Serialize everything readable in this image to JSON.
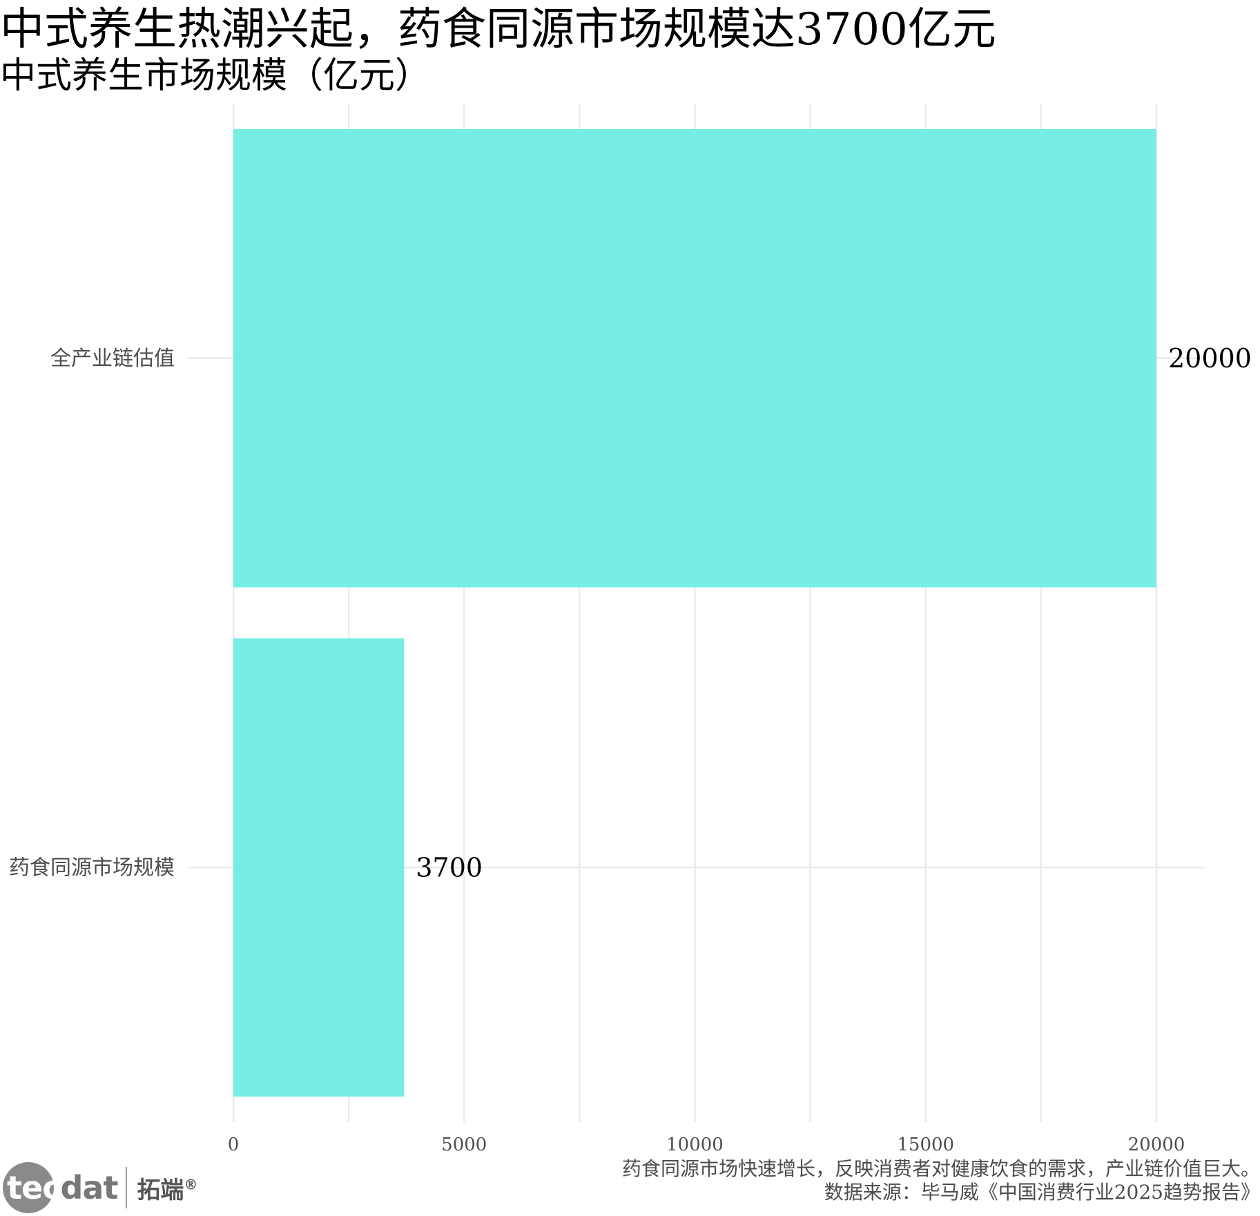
{
  "chart_data": {
    "type": "bar",
    "orientation": "horizontal",
    "title": "中式养生热潮兴起，药食同源市场规模达3700亿元",
    "subtitle": "中式养生市场规模（亿元）",
    "categories": [
      "全产业链估值",
      "药食同源市场规模"
    ],
    "values": [
      20000,
      3700
    ],
    "value_labels": [
      "20000",
      "3700"
    ],
    "xlim": [
      0,
      20000
    ],
    "x_ticks": [
      0,
      5000,
      10000,
      15000,
      20000
    ],
    "x_tick_labels": [
      "0",
      "5000",
      "10000",
      "15000",
      "20000"
    ],
    "xlabel": "",
    "ylabel": "",
    "grid": true,
    "bar_color": "#76EEE3",
    "caption_lines": [
      "药食同源市场快速增长，反映消费者对健康饮食的需求，产业链价值巨大。",
      "数据来源：毕马威《中国消费行业2025趋势报告》"
    ]
  },
  "logo": {
    "tec": "tec",
    "dat": "dat",
    "cn": "拓端",
    "reg": "®"
  }
}
